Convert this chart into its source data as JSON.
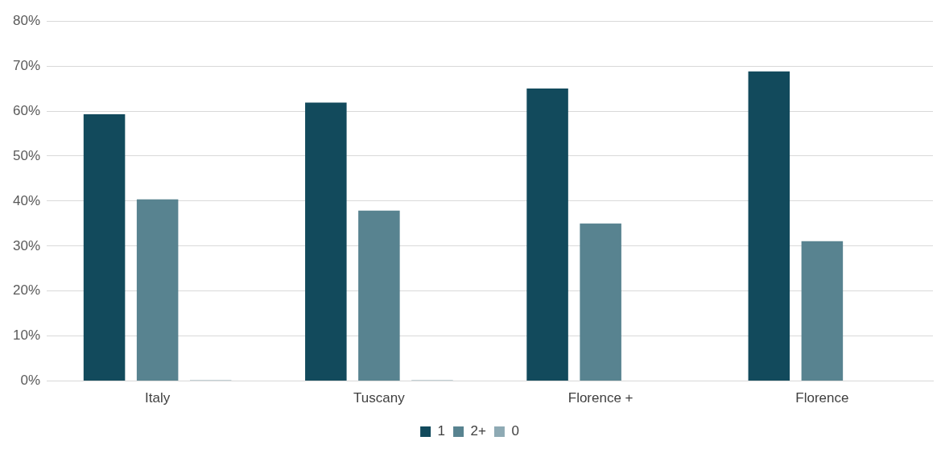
{
  "chart_data": {
    "type": "bar",
    "categories": [
      "Italy",
      "Tuscany",
      "Florence +",
      "Florence"
    ],
    "series": [
      {
        "name": "1",
        "color": "#124a5c",
        "values": [
          59.3,
          61.9,
          65.0,
          68.8
        ]
      },
      {
        "name": "2+",
        "color": "#588390",
        "values": [
          40.4,
          37.9,
          35.0,
          31.1
        ]
      },
      {
        "name": "0",
        "color": "#8eaab4",
        "values": [
          0.2,
          0.2,
          0,
          0
        ]
      }
    ],
    "ylim": [
      0,
      80
    ],
    "yticks": [
      {
        "value": 0,
        "label": "0%"
      },
      {
        "value": 10,
        "label": "10%"
      },
      {
        "value": 20,
        "label": "20%"
      },
      {
        "value": 30,
        "label": "30%"
      },
      {
        "value": 40,
        "label": "40%"
      },
      {
        "value": 50,
        "label": "50%"
      },
      {
        "value": 60,
        "label": "60%"
      },
      {
        "value": 70,
        "label": "70%"
      },
      {
        "value": 80,
        "label": "80%"
      }
    ],
    "grid": "y",
    "legend": "bottom"
  }
}
